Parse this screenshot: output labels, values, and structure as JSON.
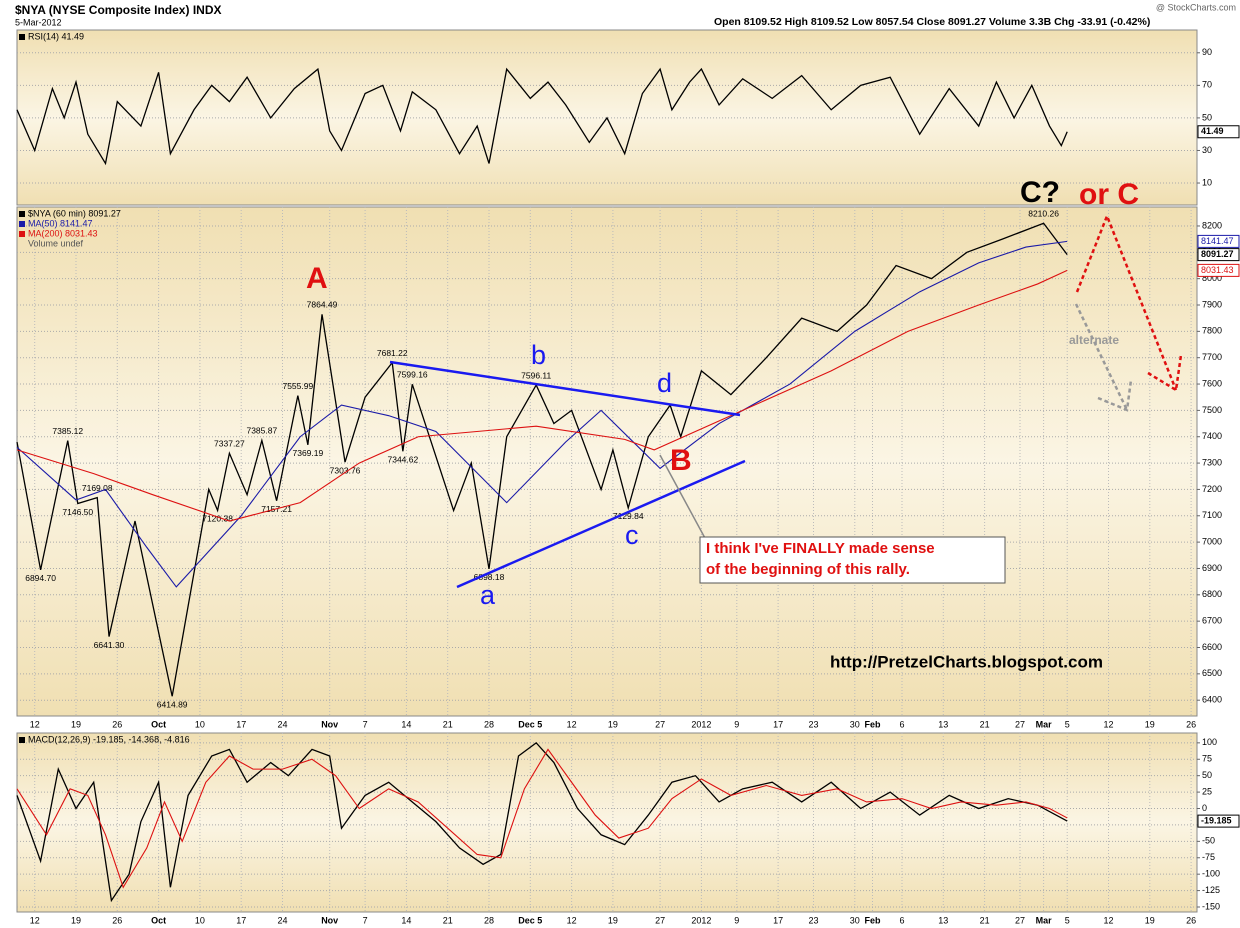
{
  "header": {
    "symbol": "$NYA (NYSE Composite Index) INDX",
    "date": "5-Mar-2012",
    "source": "@ StockCharts.com",
    "quote": "Open 8109.52  High 8109.52  Low 8057.54  Close 8091.27  Volume 3.3B  Chg -33.91 (-0.42%)"
  },
  "annotations": [
    "A",
    "B",
    "C?",
    "or C",
    "a",
    "b",
    "c",
    "d",
    "alternate",
    "I think I've FINALLY made sense",
    "of the beginning of this rally.",
    "http://PretzelCharts.blogspot.com"
  ],
  "chart_data": [
    {
      "type": "line",
      "xlim": [
        -3,
        197
      ],
      "ylim": [
        -3.5,
        104
      ],
      "yticks": [
        10,
        30,
        50,
        70,
        90
      ],
      "grid": true,
      "series": [
        {
          "name": "RSI(14) 41.49",
          "color": "#000000",
          "tag": "41.49",
          "x": [
            -3,
            0,
            3,
            5,
            7,
            9,
            12,
            14,
            18,
            21,
            23,
            27,
            30,
            33,
            36,
            40,
            44,
            48,
            50,
            52,
            56,
            59,
            62,
            64,
            68,
            72,
            75,
            77,
            80,
            84,
            87,
            90,
            94,
            97,
            100,
            103,
            106,
            108,
            111,
            113,
            116,
            120,
            125,
            130,
            135,
            140,
            145,
            150,
            155,
            160,
            163,
            166,
            169,
            172,
            174,
            175
          ],
          "values": [
            55,
            30,
            68,
            50,
            72,
            40,
            22,
            60,
            45,
            78,
            28,
            55,
            70,
            60,
            75,
            50,
            68,
            80,
            42,
            30,
            65,
            70,
            42,
            66,
            55,
            28,
            45,
            22,
            80,
            62,
            72,
            58,
            35,
            50,
            28,
            65,
            80,
            55,
            72,
            80,
            58,
            74,
            62,
            76,
            55,
            70,
            75,
            40,
            68,
            45,
            72,
            50,
            70,
            45,
            33,
            41.49
          ]
        }
      ]
    },
    {
      "type": "line",
      "xlim": [
        -3,
        197
      ],
      "ylim": [
        6340,
        8272
      ],
      "yticks": [
        6400,
        6500,
        6600,
        6700,
        6800,
        6900,
        7000,
        7100,
        7200,
        7300,
        7400,
        7500,
        7600,
        7700,
        7800,
        7900,
        8000,
        8100,
        8200
      ],
      "grid": true,
      "xticks": [
        {
          "value": 0,
          "label": "12"
        },
        {
          "value": 7,
          "label": "19"
        },
        {
          "value": 14,
          "label": "26"
        },
        {
          "value": 21,
          "label": "Oct"
        },
        {
          "value": 28,
          "label": "10"
        },
        {
          "value": 35,
          "label": "17"
        },
        {
          "value": 42,
          "label": "24"
        },
        {
          "value": 50,
          "label": "Nov"
        },
        {
          "value": 56,
          "label": "7"
        },
        {
          "value": 63,
          "label": "14"
        },
        {
          "value": 70,
          "label": "21"
        },
        {
          "value": 77,
          "label": "28"
        },
        {
          "value": 84,
          "label": "Dec 5"
        },
        {
          "value": 91,
          "label": "12"
        },
        {
          "value": 98,
          "label": "19"
        },
        {
          "value": 106,
          "label": "27"
        },
        {
          "value": 113,
          "label": "2012"
        },
        {
          "value": 119,
          "label": "9"
        },
        {
          "value": 126,
          "label": "17"
        },
        {
          "value": 132,
          "label": "23"
        },
        {
          "value": 139,
          "label": "30"
        },
        {
          "value": 142,
          "label": "Feb"
        },
        {
          "value": 147,
          "label": "6"
        },
        {
          "value": 154,
          "label": "13"
        },
        {
          "value": 161,
          "label": "21"
        },
        {
          "value": 167,
          "label": "27"
        },
        {
          "value": 171,
          "label": "Mar"
        },
        {
          "value": 175,
          "label": "5"
        },
        {
          "value": 182,
          "label": "12"
        },
        {
          "value": 189,
          "label": "19"
        },
        {
          "value": 196,
          "label": "26"
        }
      ],
      "notes": [
        "Volume undef"
      ],
      "series": [
        {
          "name": "$NYA (60 min) 8091.27",
          "color": "#000000",
          "tag": "8091.27",
          "x": [
            -3,
            1,
            5.6,
            7.3,
            10.6,
            12.6,
            17,
            23.3,
            29.5,
            31,
            33,
            36,
            38.5,
            41,
            44.6,
            46.3,
            48.7,
            52.6,
            56,
            60.6,
            62.4,
            64,
            71,
            74,
            77,
            80,
            85,
            88,
            91,
            96,
            98,
            100.6,
            104,
            107.7,
            109.5,
            113,
            118,
            124,
            130,
            136,
            141,
            146,
            152,
            158,
            164,
            171,
            175
          ],
          "values": [
            7380,
            6894.7,
            7385.12,
            7146.5,
            7169.08,
            6641.3,
            7080,
            6414.89,
            7200,
            7120.38,
            7337.27,
            7180,
            7385.87,
            7157.21,
            7555.99,
            7369.19,
            7864.49,
            7303.76,
            7550,
            7681.22,
            7344.62,
            7599.16,
            7120,
            7300,
            6898.18,
            7400,
            7596.11,
            7450,
            7500,
            7200,
            7350,
            7129.84,
            7400,
            7520,
            7400,
            7650,
            7560,
            7700,
            7850,
            7800,
            7900,
            8050,
            8000,
            8100,
            8150,
            8210.26,
            8091.27
          ],
          "value_labels": [
            null,
            "6894.70",
            "7385.12",
            "7146.50",
            "7169.08",
            "6641.30",
            null,
            "6414.89",
            null,
            "7120.38",
            "7337.27",
            null,
            "7385.87",
            "7157.21",
            "7555.99",
            "7369.19",
            "7864.49",
            "7303.76",
            null,
            "7681.22",
            "7344.62",
            "7599.16",
            null,
            null,
            "6898.18",
            null,
            "7596.11",
            null,
            null,
            null,
            null,
            "7129.84",
            null,
            null,
            null,
            null,
            null,
            null,
            null,
            null,
            null,
            null,
            null,
            null,
            null,
            "8210.26",
            null
          ]
        },
        {
          "name": "MA(50) 8141.47",
          "color": "#1a1aa8",
          "tag": "8141.47",
          "x": [
            -3,
            7,
            12,
            19,
            24,
            35,
            45,
            52,
            60,
            68,
            80,
            90,
            96,
            106,
            116,
            128,
            139,
            150,
            160,
            168,
            175
          ],
          "values": [
            7360,
            7160,
            7200,
            6980,
            6830,
            7100,
            7400,
            7520,
            7480,
            7420,
            7150,
            7380,
            7500,
            7280,
            7450,
            7600,
            7800,
            7950,
            8060,
            8120,
            8141.47
          ]
        },
        {
          "name": "MA(200) 8031.43",
          "color": "#dd1111",
          "tag": "8031.43",
          "x": [
            -3,
            10,
            20,
            33,
            45,
            55,
            65,
            85,
            100,
            105,
            120,
            135,
            148,
            160,
            170,
            175
          ],
          "values": [
            7350,
            7260,
            7180,
            7080,
            7150,
            7300,
            7400,
            7440,
            7390,
            7350,
            7500,
            7650,
            7800,
            7900,
            7980,
            8031.43
          ]
        }
      ]
    },
    {
      "type": "line",
      "xlim": [
        -3,
        197
      ],
      "ylim": [
        -157.6,
        115
      ],
      "yticks": [
        -150,
        -125,
        -100,
        -75,
        -50,
        -25,
        0,
        25,
        50,
        75,
        100
      ],
      "grid": true,
      "xticks": [
        {
          "value": 0,
          "label": "12"
        },
        {
          "value": 7,
          "label": "19"
        },
        {
          "value": 14,
          "label": "26"
        },
        {
          "value": 21,
          "label": "Oct"
        },
        {
          "value": 28,
          "label": "10"
        },
        {
          "value": 35,
          "label": "17"
        },
        {
          "value": 42,
          "label": "24"
        },
        {
          "value": 50,
          "label": "Nov"
        },
        {
          "value": 56,
          "label": "7"
        },
        {
          "value": 63,
          "label": "14"
        },
        {
          "value": 70,
          "label": "21"
        },
        {
          "value": 77,
          "label": "28"
        },
        {
          "value": 84,
          "label": "Dec 5"
        },
        {
          "value": 91,
          "label": "12"
        },
        {
          "value": 98,
          "label": "19"
        },
        {
          "value": 106,
          "label": "27"
        },
        {
          "value": 113,
          "label": "2012"
        },
        {
          "value": 119,
          "label": "9"
        },
        {
          "value": 126,
          "label": "17"
        },
        {
          "value": 132,
          "label": "23"
        },
        {
          "value": 139,
          "label": "30"
        },
        {
          "value": 142,
          "label": "Feb"
        },
        {
          "value": 147,
          "label": "6"
        },
        {
          "value": 154,
          "label": "13"
        },
        {
          "value": 161,
          "label": "21"
        },
        {
          "value": 167,
          "label": "27"
        },
        {
          "value": 171,
          "label": "Mar"
        },
        {
          "value": 175,
          "label": "5"
        },
        {
          "value": 182,
          "label": "12"
        },
        {
          "value": 189,
          "label": "19"
        },
        {
          "value": 196,
          "label": "26"
        }
      ],
      "series": [
        {
          "name": "MACD(12,26,9) -19.185, -14.368, -4.816",
          "color": "#000000",
          "tag": "-19.185",
          "x": [
            -3,
            1,
            4,
            7,
            10,
            13,
            16,
            18,
            21,
            23,
            26,
            30,
            33,
            36,
            40,
            43,
            47,
            50,
            52,
            56,
            60,
            64,
            68,
            72,
            76,
            79,
            82,
            85,
            88,
            92,
            96,
            100,
            104,
            108,
            112,
            116,
            120,
            125,
            130,
            135,
            140,
            145,
            150,
            155,
            160,
            165,
            170,
            175
          ],
          "values": [
            20,
            -80,
            60,
            0,
            40,
            -140,
            -100,
            -20,
            40,
            -120,
            20,
            80,
            90,
            40,
            70,
            50,
            90,
            80,
            -30,
            20,
            40,
            10,
            -20,
            -60,
            -85,
            -70,
            80,
            100,
            70,
            0,
            -40,
            -55,
            -10,
            40,
            50,
            10,
            30,
            40,
            10,
            40,
            0,
            25,
            -10,
            20,
            0,
            15,
            5,
            -19.185
          ]
        },
        {
          "color": "#dd1111",
          "x": [
            -3,
            2,
            6,
            9,
            12,
            15,
            19,
            22,
            25,
            29,
            33,
            37,
            42,
            47,
            51,
            55,
            60,
            65,
            70,
            75,
            79,
            83,
            87,
            91,
            95,
            99,
            104,
            108,
            113,
            118,
            124,
            130,
            136,
            141,
            147,
            152,
            157,
            163,
            168,
            172,
            175
          ],
          "values": [
            30,
            -40,
            30,
            20,
            -40,
            -120,
            -60,
            10,
            -50,
            40,
            80,
            60,
            60,
            75,
            50,
            0,
            30,
            10,
            -30,
            -70,
            -75,
            30,
            90,
            40,
            -10,
            -45,
            -30,
            15,
            45,
            20,
            35,
            20,
            30,
            10,
            15,
            0,
            10,
            5,
            10,
            0,
            -14.368
          ]
        }
      ]
    }
  ]
}
